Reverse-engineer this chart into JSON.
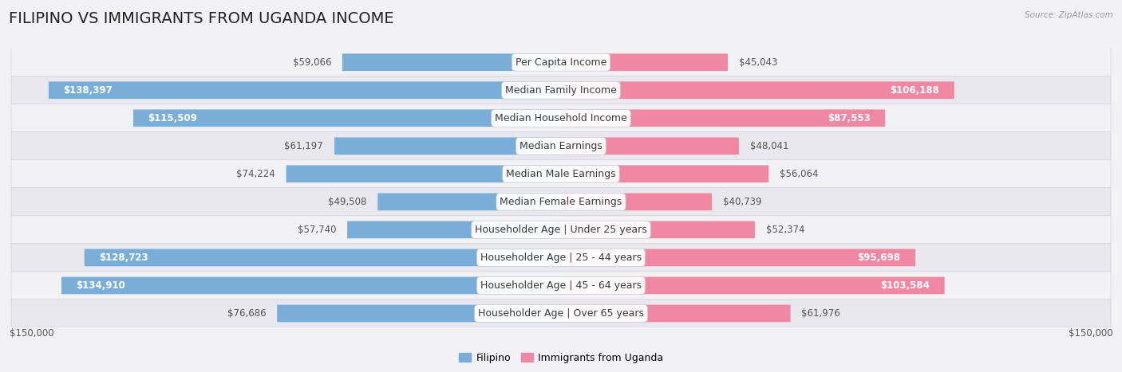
{
  "title": "FILIPINO VS IMMIGRANTS FROM UGANDA INCOME",
  "source": "Source: ZipAtlas.com",
  "categories": [
    "Per Capita Income",
    "Median Family Income",
    "Median Household Income",
    "Median Earnings",
    "Median Male Earnings",
    "Median Female Earnings",
    "Householder Age | Under 25 years",
    "Householder Age | 25 - 44 years",
    "Householder Age | 45 - 64 years",
    "Householder Age | Over 65 years"
  ],
  "filipino_values": [
    59066,
    138397,
    115509,
    61197,
    74224,
    49508,
    57740,
    128723,
    134910,
    76686
  ],
  "uganda_values": [
    45043,
    106188,
    87553,
    48041,
    56064,
    40739,
    52374,
    95698,
    103584,
    61976
  ],
  "max_value": 150000,
  "filipino_color": "#79aed8",
  "uganda_color": "#f087a3",
  "filipino_label": "Filipino",
  "uganda_label": "Immigrants from Uganda",
  "bar_height": 0.62,
  "row_bg_light": "#f2f2f5",
  "row_bg_dark": "#e8e8ee",
  "label_font_size": 9.0,
  "value_font_size": 8.5,
  "title_font_size": 14,
  "axis_label": "$150,000",
  "background_color": "#f2f2f5"
}
